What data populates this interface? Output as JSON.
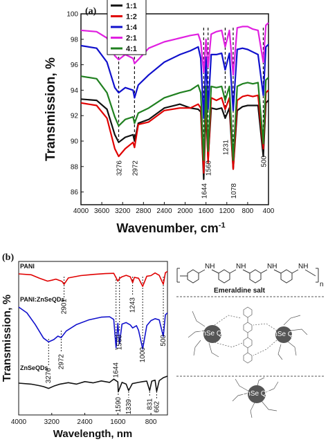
{
  "chart_data": [
    {
      "type": "line",
      "panel_label": "(a)",
      "xlabel": "Wavenumber, cm",
      "xlabel_sup": "-1",
      "ylabel": "Transmission, %",
      "xlim": [
        4000,
        400
      ],
      "ylim": [
        85,
        100
      ],
      "xticks": [
        4000,
        3600,
        3200,
        2800,
        2400,
        2000,
        1600,
        1200,
        800,
        400
      ],
      "yticks": [
        86,
        88,
        90,
        92,
        94,
        96,
        98,
        100
      ],
      "grid": false,
      "legend_position": "top-center",
      "series": [
        {
          "name": "1:1",
          "color": "#111111",
          "x": [
            4000,
            3700,
            3500,
            3350,
            3276,
            3150,
            3000,
            2972,
            2900,
            2700,
            2400,
            2100,
            1900,
            1750,
            1700,
            1644,
            1600,
            1560,
            1500,
            1400,
            1300,
            1231,
            1150,
            1078,
            1000,
            900,
            800,
            700,
            600,
            500,
            450,
            400
          ],
          "y": [
            93.3,
            93.2,
            92.5,
            90.5,
            89.9,
            90.3,
            90.5,
            90.0,
            91.4,
            91.7,
            92.6,
            92.9,
            92.6,
            92.5,
            92.3,
            87.0,
            92.4,
            88.5,
            92.6,
            92.5,
            92.6,
            91.8,
            92.6,
            87.8,
            92.4,
            92.7,
            92.8,
            92.8,
            92.8,
            88.8,
            93.0,
            93.2
          ]
        },
        {
          "name": "1:2",
          "color": "#e00000",
          "x": [
            4000,
            3700,
            3500,
            3350,
            3276,
            3150,
            3000,
            2972,
            2900,
            2700,
            2400,
            2100,
            1900,
            1750,
            1700,
            1644,
            1600,
            1560,
            1500,
            1400,
            1300,
            1231,
            1150,
            1078,
            1000,
            900,
            800,
            700,
            600,
            500,
            450,
            400
          ],
          "y": [
            93.0,
            92.8,
            91.8,
            89.4,
            88.8,
            89.4,
            89.9,
            89.5,
            91.3,
            91.5,
            92.4,
            92.6,
            92.6,
            92.9,
            92.6,
            87.5,
            93.2,
            88.3,
            93.4,
            93.2,
            93.4,
            92.5,
            93.4,
            87.8,
            93.2,
            93.5,
            93.6,
            93.5,
            93.6,
            89.4,
            93.8,
            94.0
          ]
        },
        {
          "name": "1:4",
          "color": "#1010cc",
          "x": [
            4000,
            3700,
            3500,
            3350,
            3276,
            3150,
            3000,
            2972,
            2900,
            2700,
            2400,
            2100,
            1900,
            1750,
            1700,
            1644,
            1600,
            1560,
            1500,
            1400,
            1300,
            1231,
            1150,
            1078,
            1000,
            900,
            800,
            700,
            600,
            500,
            450,
            400
          ],
          "y": [
            97.5,
            97.3,
            96.2,
            94.2,
            93.8,
            94.2,
            94.0,
            93.4,
            94.4,
            95.2,
            96.2,
            96.8,
            97.1,
            97.4,
            96.5,
            91.8,
            96.6,
            92.5,
            96.8,
            96.8,
            96.9,
            95.6,
            96.9,
            92.4,
            97.2,
            97.3,
            97.2,
            97.0,
            96.8,
            93.6,
            97.4,
            97.6
          ]
        },
        {
          "name": "2:1",
          "color": "#e020e0",
          "x": [
            4000,
            3700,
            3500,
            3350,
            3276,
            3150,
            3000,
            2972,
            2900,
            2700,
            2400,
            2100,
            1900,
            1750,
            1700,
            1644,
            1600,
            1560,
            1500,
            1400,
            1300,
            1231,
            1150,
            1078,
            1000,
            900,
            800,
            700,
            600,
            500,
            450,
            400
          ],
          "y": [
            98.7,
            98.6,
            98.1,
            96.7,
            96.4,
            96.8,
            96.5,
            96.1,
            96.4,
            97.3,
            97.8,
            98.1,
            98.3,
            98.4,
            97.8,
            95.4,
            98.0,
            95.8,
            98.4,
            98.6,
            98.7,
            97.4,
            98.7,
            95.2,
            98.9,
            99.0,
            99.0,
            98.8,
            98.7,
            96.2,
            99.1,
            99.3
          ]
        },
        {
          "name": "4:1",
          "color": "#208020",
          "x": [
            4000,
            3700,
            3500,
            3350,
            3276,
            3150,
            3000,
            2972,
            2900,
            2700,
            2400,
            2100,
            1900,
            1750,
            1700,
            1644,
            1600,
            1560,
            1500,
            1400,
            1300,
            1231,
            1150,
            1078,
            1000,
            900,
            800,
            700,
            600,
            500,
            450,
            400
          ],
          "y": [
            95.1,
            94.9,
            93.8,
            91.9,
            91.2,
            91.7,
            91.9,
            91.4,
            92.2,
            92.6,
            93.4,
            93.8,
            94.0,
            94.4,
            93.8,
            88.5,
            94.3,
            89.2,
            94.3,
            94.2,
            94.3,
            93.2,
            94.3,
            88.5,
            94.3,
            94.5,
            94.6,
            94.5,
            94.6,
            89.8,
            94.8,
            95.0
          ]
        }
      ],
      "annotations": [
        {
          "label": "3276",
          "x": 3276
        },
        {
          "label": "2972",
          "x": 2972
        },
        {
          "label": "1644",
          "x": 1644
        },
        {
          "label": "1560",
          "x": 1560
        },
        {
          "label": "1231",
          "x": 1231
        },
        {
          "label": "1078",
          "x": 1078
        },
        {
          "label": "500",
          "x": 500
        }
      ]
    },
    {
      "type": "line",
      "panel_label": "(b)",
      "xlabel": "Wavelength, nm",
      "ylabel": "Transmission, %",
      "xlim": [
        4000,
        400
      ],
      "xticks": [
        4000,
        3200,
        2400,
        1600,
        800
      ],
      "series": [
        {
          "name": "PANI",
          "color": "#e00000",
          "offset": 0,
          "x": [
            4000,
            3700,
            3500,
            3300,
            3200,
            3100,
            2950,
            2901,
            2800,
            2500,
            2200,
            1900,
            1700,
            1600,
            1560,
            1500,
            1400,
            1300,
            1243,
            1200,
            1100,
            1000,
            900,
            800,
            700,
            600,
            500,
            450,
            400
          ],
          "y": [
            0.0,
            -0.3,
            -1.5,
            -2.5,
            -2.2,
            -1.8,
            -2.6,
            -3.6,
            -1.4,
            -0.6,
            -0.2,
            0.1,
            0.2,
            -2.5,
            -1.6,
            -1.0,
            -0.5,
            -1.0,
            -3.0,
            -1.2,
            -1.5,
            -4.3,
            -0.8,
            -0.6,
            0.3,
            -0.5,
            -3.6,
            0.4,
            0.8
          ]
        },
        {
          "name": "PANI:ZnSeQDs",
          "color": "#1010cc",
          "offset": 0,
          "x": [
            4000,
            3800,
            3600,
            3400,
            3276,
            3150,
            3050,
            2972,
            2850,
            2600,
            2300,
            2000,
            1800,
            1700,
            1644,
            1600,
            1560,
            1500,
            1400,
            1300,
            1243,
            1150,
            1100,
            1000,
            900,
            800,
            700,
            600,
            500,
            450,
            400
          ],
          "y": [
            0.0,
            -1.5,
            -4.5,
            -8.0,
            -9.0,
            -8.4,
            -7.5,
            -7.9,
            -6.2,
            -4.5,
            -3.3,
            -2.6,
            -2.5,
            -3.2,
            -10.5,
            -4.2,
            -9.5,
            -4.4,
            -4.0,
            -4.6,
            -5.4,
            -4.8,
            -6.0,
            -10.8,
            -4.8,
            -3.5,
            -3.0,
            -3.3,
            -7.6,
            -2.0,
            -1.5
          ]
        },
        {
          "name": "ZnSeQDs",
          "color": "#111111",
          "offset": 0,
          "x": [
            4000,
            3700,
            3500,
            3400,
            3276,
            3150,
            3000,
            2800,
            2600,
            2400,
            2200,
            2000,
            1800,
            1700,
            1600,
            1590,
            1500,
            1400,
            1339,
            1250,
            1100,
            1000,
            900,
            831,
            780,
            700,
            662,
            600,
            500,
            400
          ],
          "y": [
            0.0,
            -0.4,
            -1.0,
            -1.4,
            -2.1,
            -1.2,
            -0.4,
            0.2,
            -0.4,
            0.6,
            0.1,
            0.9,
            0.3,
            1.6,
            0.5,
            -3.5,
            0.3,
            -0.4,
            -3.0,
            -0.2,
            0.3,
            0.6,
            0.8,
            -3.0,
            0.8,
            1.2,
            -3.3,
            1.0,
            2.2,
            2.8
          ]
        }
      ],
      "annotations": [
        {
          "label": "2901",
          "x": 2901
        },
        {
          "label": "1243",
          "x": 1243
        },
        {
          "label": "2972",
          "x": 2972
        },
        {
          "label": "1644",
          "x": 1644
        },
        {
          "label": "1560",
          "x": 1560
        },
        {
          "label": "1000",
          "x": 1000
        },
        {
          "label": "500",
          "x": 500
        },
        {
          "label": "3276",
          "x": 3276
        },
        {
          "label": "1590",
          "x": 1590
        },
        {
          "label": "1339",
          "x": 1339
        },
        {
          "label": "831",
          "x": 831
        },
        {
          "label": "662",
          "x": 662
        }
      ],
      "structure_labels": {
        "emeraldine": "Emeraldine salt",
        "nh": "NH",
        "n_sub": "n",
        "qd_label": "ZnSe QD"
      }
    }
  ]
}
